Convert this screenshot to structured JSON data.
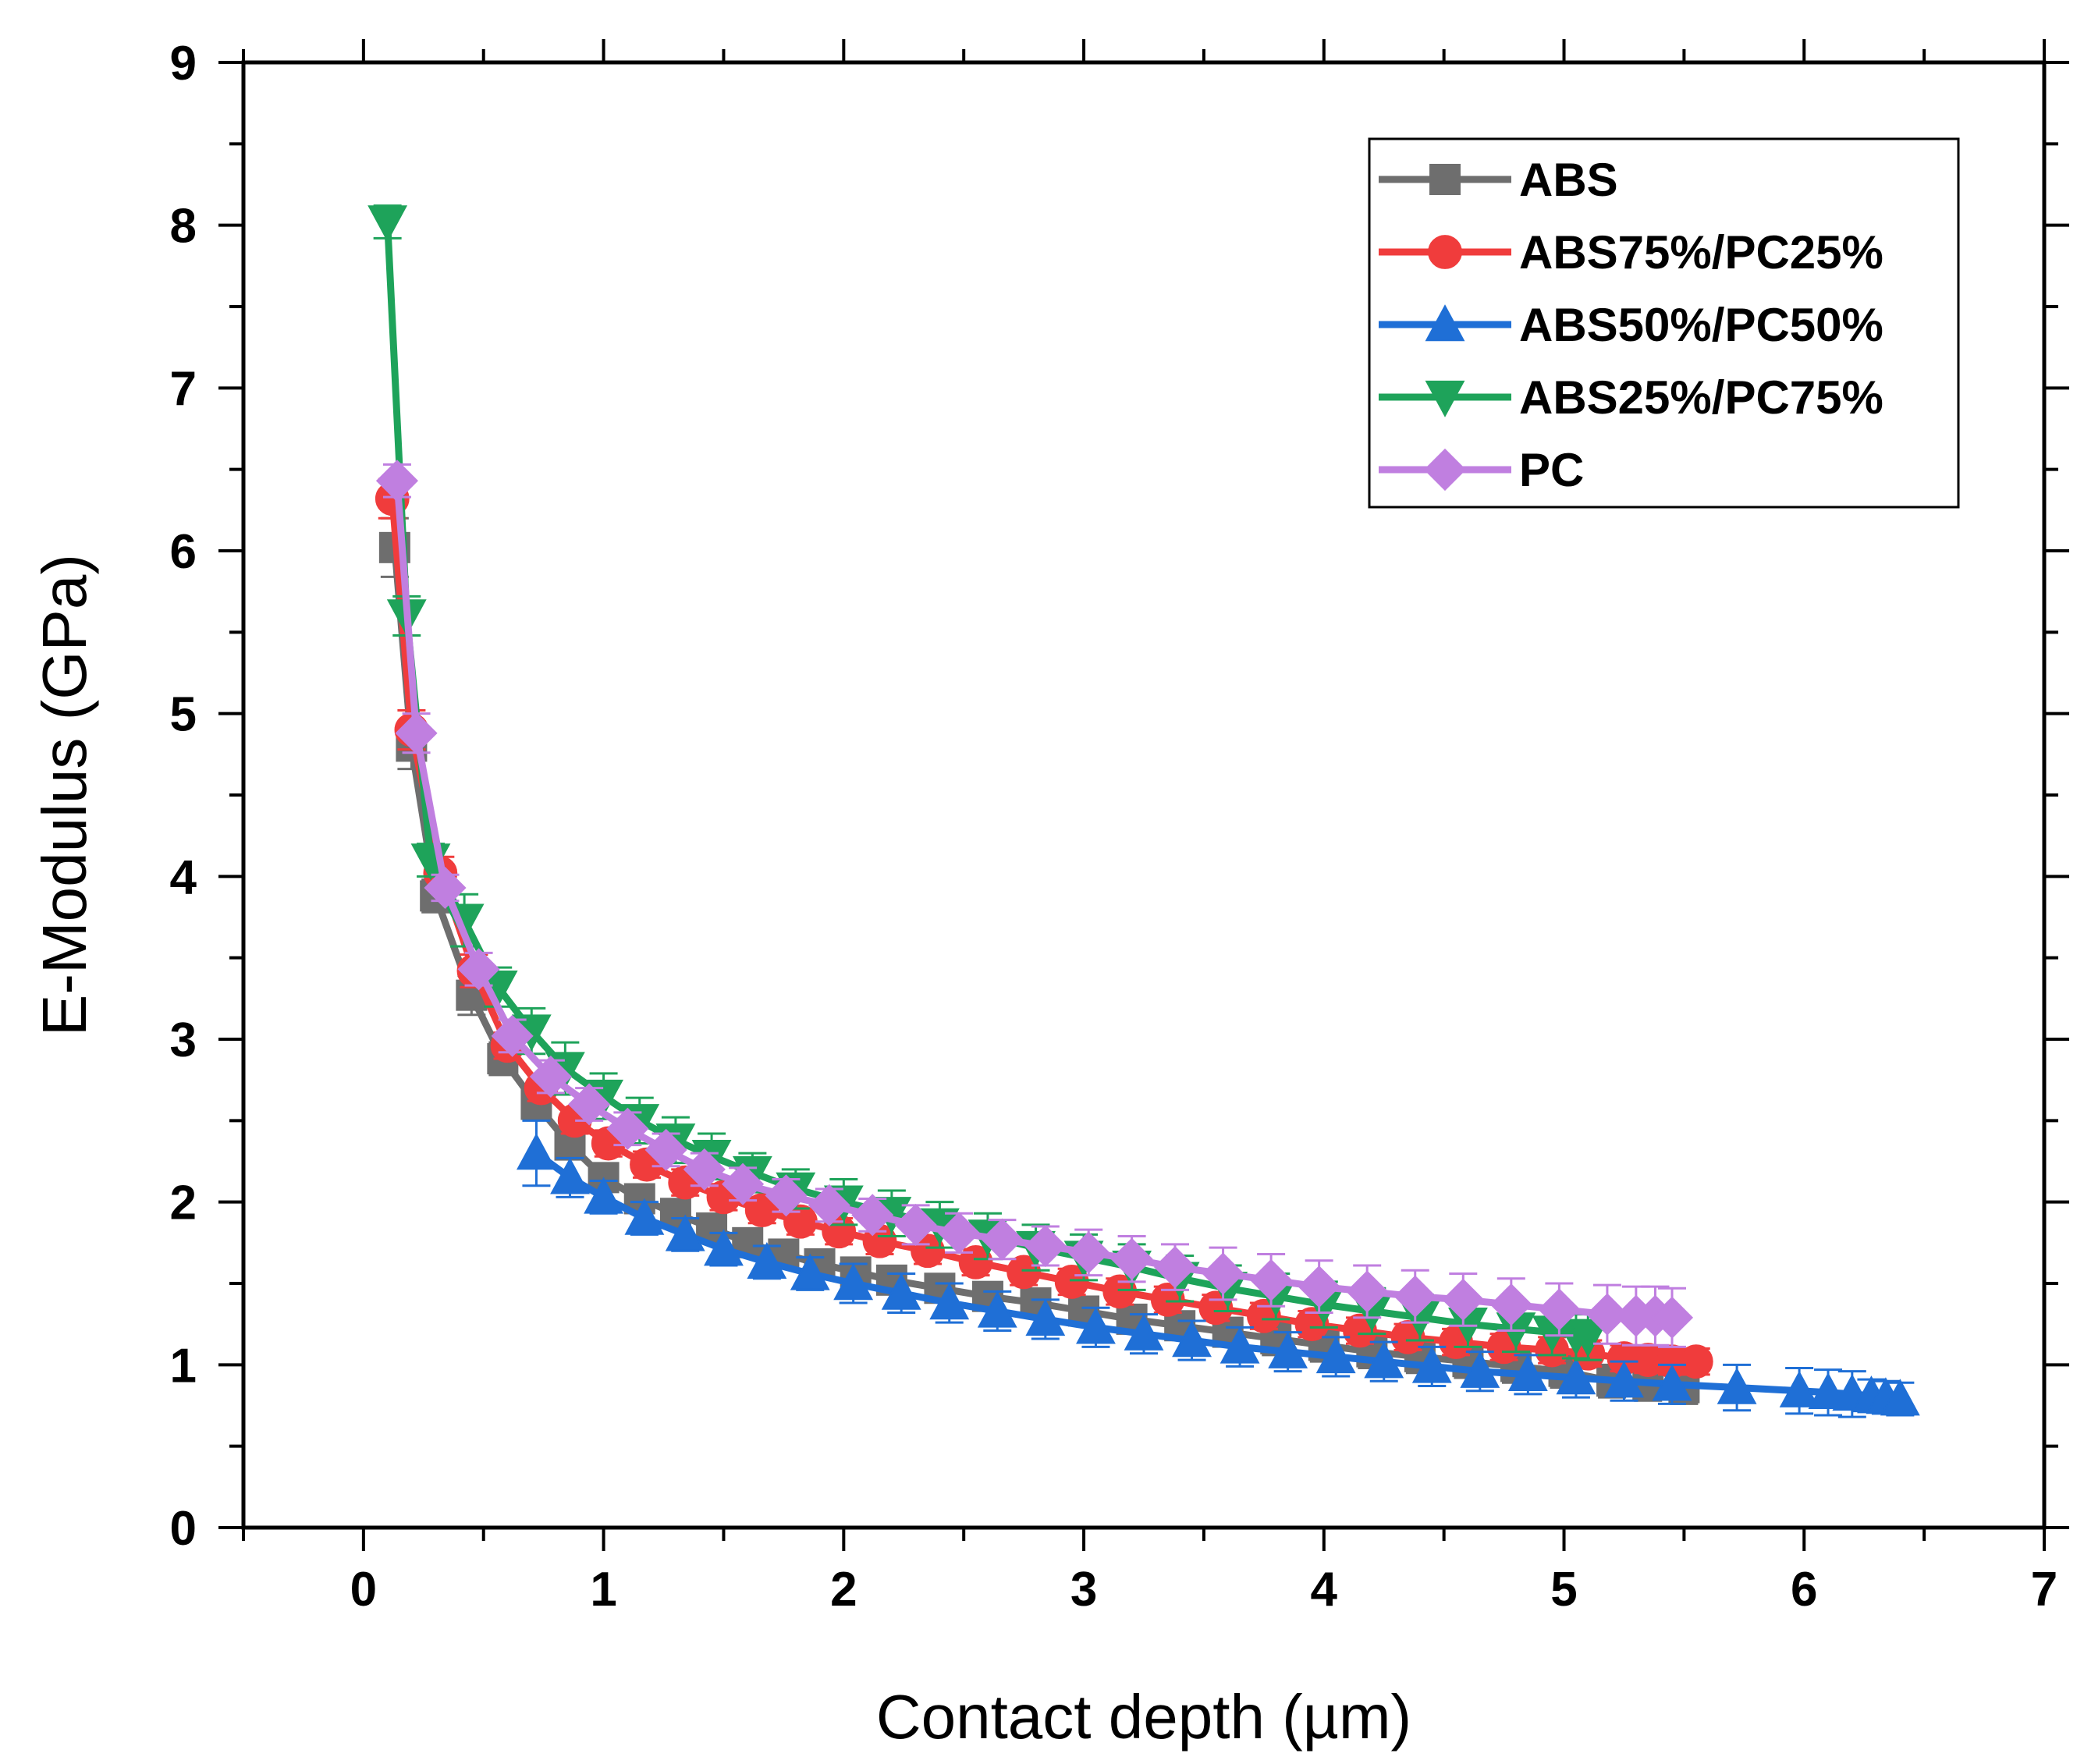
{
  "chart_data": {
    "type": "line",
    "title": "",
    "xlabel": "Contact depth (µm)",
    "ylabel": "E-Modulus (GPa)",
    "xlim": [
      -0.5,
      7
    ],
    "ylim": [
      0,
      9
    ],
    "xticks": [
      0,
      1,
      2,
      3,
      4,
      5,
      6,
      7
    ],
    "yticks": [
      0,
      1,
      2,
      3,
      4,
      5,
      6,
      7,
      8,
      9
    ],
    "grid": false,
    "legend_position": "top-right",
    "series": [
      {
        "name": "ABS",
        "color": "#6e6e6e",
        "marker": "square",
        "x": [
          0.13,
          0.2,
          0.3,
          0.45,
          0.58,
          0.72,
          0.86,
          1.0,
          1.15,
          1.3,
          1.45,
          1.6,
          1.75,
          1.9,
          2.05,
          2.2,
          2.4,
          2.6,
          2.8,
          3.0,
          3.2,
          3.4,
          3.6,
          3.8,
          4.0,
          4.2,
          4.4,
          4.6,
          4.8,
          5.0,
          5.2,
          5.35,
          5.5
        ],
        "y": [
          6.02,
          4.8,
          3.88,
          3.27,
          2.88,
          2.6,
          2.35,
          2.15,
          2.02,
          1.93,
          1.84,
          1.75,
          1.68,
          1.62,
          1.57,
          1.52,
          1.47,
          1.42,
          1.38,
          1.33,
          1.28,
          1.24,
          1.2,
          1.16,
          1.12,
          1.08,
          1.05,
          1.02,
          0.99,
          0.96,
          0.9,
          0.88,
          0.86
        ],
        "err": [
          0.18,
          0.14,
          0.1,
          0.12,
          0.1,
          0.09,
          0.08,
          0.08,
          0.08,
          0.08,
          0.08,
          0.08,
          0.08,
          0.08,
          0.08,
          0.08,
          0.08,
          0.08,
          0.08,
          0.08,
          0.08,
          0.08,
          0.08,
          0.1,
          0.1,
          0.1,
          0.1,
          0.1,
          0.1,
          0.1,
          0.1,
          0.1,
          0.1
        ]
      },
      {
        "name": "ABS75%/PC25%",
        "color": "#f03c3c",
        "marker": "circle",
        "x": [
          0.12,
          0.2,
          0.32,
          0.46,
          0.6,
          0.74,
          0.88,
          1.02,
          1.18,
          1.34,
          1.5,
          1.66,
          1.82,
          1.98,
          2.15,
          2.35,
          2.55,
          2.75,
          2.95,
          3.15,
          3.35,
          3.55,
          3.75,
          3.95,
          4.15,
          4.35,
          4.55,
          4.75,
          4.95,
          5.1,
          5.25,
          5.35,
          5.45,
          5.55
        ],
        "y": [
          6.32,
          4.9,
          4.02,
          3.42,
          2.96,
          2.7,
          2.5,
          2.36,
          2.23,
          2.12,
          2.03,
          1.95,
          1.88,
          1.82,
          1.76,
          1.7,
          1.63,
          1.57,
          1.51,
          1.45,
          1.4,
          1.35,
          1.3,
          1.25,
          1.21,
          1.17,
          1.14,
          1.11,
          1.09,
          1.07,
          1.04,
          1.03,
          1.02,
          1.02
        ],
        "err": [
          0.12,
          0.12,
          0.1,
          0.1,
          0.08,
          0.08,
          0.08,
          0.08,
          0.08,
          0.08,
          0.08,
          0.08,
          0.08,
          0.08,
          0.08,
          0.08,
          0.08,
          0.08,
          0.08,
          0.08,
          0.08,
          0.08,
          0.08,
          0.08,
          0.08,
          0.08,
          0.08,
          0.08,
          0.08,
          0.08,
          0.08,
          0.08,
          0.08,
          0.08
        ]
      },
      {
        "name": "ABS50%/PC50%",
        "color": "#1f6fd6",
        "marker": "triangle-up",
        "x": [
          0.72,
          0.86,
          1.0,
          1.17,
          1.34,
          1.5,
          1.68,
          1.86,
          2.04,
          2.24,
          2.44,
          2.64,
          2.84,
          3.05,
          3.25,
          3.45,
          3.65,
          3.85,
          4.05,
          4.25,
          4.45,
          4.65,
          4.85,
          5.05,
          5.25,
          5.45,
          5.72,
          5.98,
          6.1,
          6.2,
          6.28,
          6.34,
          6.4
        ],
        "y": [
          2.3,
          2.15,
          2.03,
          1.9,
          1.8,
          1.71,
          1.63,
          1.56,
          1.5,
          1.44,
          1.38,
          1.33,
          1.28,
          1.23,
          1.19,
          1.15,
          1.11,
          1.08,
          1.05,
          1.02,
          0.99,
          0.96,
          0.94,
          0.92,
          0.9,
          0.88,
          0.86,
          0.84,
          0.83,
          0.82,
          0.81,
          0.8,
          0.79
        ],
        "err": [
          0.2,
          0.12,
          0.1,
          0.1,
          0.1,
          0.1,
          0.1,
          0.1,
          0.12,
          0.12,
          0.12,
          0.12,
          0.12,
          0.12,
          0.12,
          0.12,
          0.12,
          0.12,
          0.12,
          0.12,
          0.12,
          0.12,
          0.12,
          0.12,
          0.12,
          0.12,
          0.14,
          0.14,
          0.14,
          0.14,
          0.1,
          0.1,
          0.1
        ]
      },
      {
        "name": "ABS25%/PC75%",
        "color": "#1ea35a",
        "marker": "triangle-down",
        "x": [
          0.1,
          0.18,
          0.28,
          0.42,
          0.56,
          0.7,
          0.84,
          1.0,
          1.15,
          1.3,
          1.45,
          1.62,
          1.8,
          2.0,
          2.2,
          2.4,
          2.6,
          2.8,
          3.0,
          3.2,
          3.4,
          3.6,
          3.8,
          4.0,
          4.2,
          4.4,
          4.6,
          4.8,
          4.95,
          5.05,
          5.1
        ],
        "y": [
          8.02,
          5.6,
          4.1,
          3.73,
          3.32,
          3.05,
          2.82,
          2.65,
          2.5,
          2.38,
          2.28,
          2.18,
          2.08,
          2.0,
          1.93,
          1.86,
          1.79,
          1.72,
          1.66,
          1.6,
          1.53,
          1.47,
          1.42,
          1.37,
          1.33,
          1.29,
          1.25,
          1.22,
          1.2,
          1.18,
          1.17
        ],
        "err": [
          0.1,
          0.12,
          0.1,
          0.16,
          0.12,
          0.14,
          0.16,
          0.14,
          0.14,
          0.14,
          0.14,
          0.12,
          0.12,
          0.14,
          0.14,
          0.14,
          0.14,
          0.14,
          0.14,
          0.14,
          0.14,
          0.14,
          0.14,
          0.14,
          0.14,
          0.14,
          0.14,
          0.14,
          0.14,
          0.14,
          0.14
        ]
      },
      {
        "name": "PC",
        "color": "#c07fe0",
        "marker": "diamond",
        "x": [
          0.14,
          0.22,
          0.34,
          0.48,
          0.62,
          0.78,
          0.94,
          1.1,
          1.26,
          1.42,
          1.58,
          1.76,
          1.94,
          2.12,
          2.3,
          2.48,
          2.66,
          2.84,
          3.02,
          3.2,
          3.38,
          3.58,
          3.78,
          3.98,
          4.18,
          4.38,
          4.58,
          4.78,
          4.98,
          5.18,
          5.3,
          5.38,
          5.45
        ],
        "y": [
          6.43,
          4.88,
          3.93,
          3.43,
          3.02,
          2.77,
          2.6,
          2.45,
          2.32,
          2.2,
          2.11,
          2.04,
          1.98,
          1.92,
          1.86,
          1.81,
          1.77,
          1.73,
          1.69,
          1.65,
          1.6,
          1.56,
          1.52,
          1.48,
          1.45,
          1.42,
          1.4,
          1.37,
          1.34,
          1.31,
          1.3,
          1.3,
          1.29
        ],
        "err": [
          0.1,
          0.12,
          0.08,
          0.1,
          0.1,
          0.1,
          0.1,
          0.1,
          0.1,
          0.1,
          0.1,
          0.1,
          0.1,
          0.1,
          0.12,
          0.12,
          0.12,
          0.12,
          0.14,
          0.14,
          0.14,
          0.16,
          0.16,
          0.16,
          0.16,
          0.16,
          0.16,
          0.16,
          0.16,
          0.18,
          0.18,
          0.18,
          0.18
        ]
      }
    ]
  }
}
